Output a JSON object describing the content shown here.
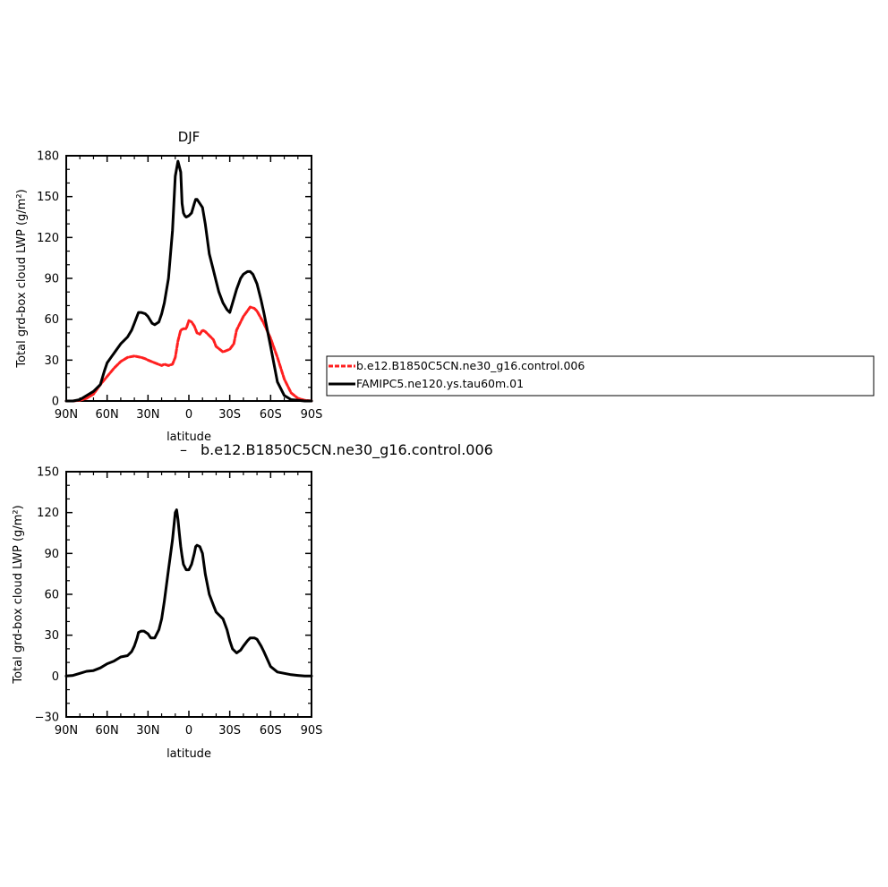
{
  "chart_data": [
    {
      "type": "line",
      "title": "DJF",
      "xlabel": "latitude",
      "ylabel": "Total grd-box cloud LWP (g/m²)",
      "xlim": [
        90,
        -90
      ],
      "ylim": [
        0,
        180
      ],
      "yticks": [
        0,
        30,
        60,
        90,
        120,
        150,
        180
      ],
      "xticks": [
        {
          "value": 90,
          "label": "90N"
        },
        {
          "value": 60,
          "label": "60N"
        },
        {
          "value": 30,
          "label": "30N"
        },
        {
          "value": 0,
          "label": "0"
        },
        {
          "value": -30,
          "label": "30S"
        },
        {
          "value": -60,
          "label": "60S"
        },
        {
          "value": -90,
          "label": "90S"
        }
      ],
      "legend_position": "right",
      "series": [
        {
          "name": "b.e12.B1850C5CN.ne30_g16.control.006",
          "color": "#ff2020",
          "dashed": true,
          "x": [
            90,
            85,
            80,
            75,
            70,
            65,
            60,
            55,
            50,
            45,
            40,
            35,
            32,
            30,
            25,
            20,
            18,
            15,
            12,
            10,
            8,
            6,
            4,
            2,
            0,
            -2,
            -4,
            -6,
            -8,
            -10,
            -12,
            -15,
            -18,
            -20,
            -25,
            -30,
            -33,
            -35,
            -40,
            -45,
            -48,
            -50,
            -55,
            -60,
            -65,
            -70,
            -75,
            -80,
            -85,
            -90
          ],
          "y": [
            0,
            0,
            0.5,
            2,
            5,
            12,
            18,
            24,
            29,
            32,
            33,
            32,
            31,
            30,
            28,
            26,
            27,
            26,
            27,
            32,
            44,
            52,
            53,
            53,
            59,
            58,
            55,
            50,
            49,
            52,
            51,
            48,
            45,
            40,
            36,
            38,
            42,
            52,
            62,
            69,
            68,
            66,
            57,
            46,
            32,
            16,
            6,
            2,
            0.5,
            0
          ]
        },
        {
          "name": "FAMIPC5.ne120.ys.tau60m.01",
          "color": "#000000",
          "dashed": false,
          "x": [
            90,
            85,
            80,
            75,
            70,
            65,
            62,
            60,
            55,
            50,
            45,
            42,
            40,
            37,
            35,
            32,
            30,
            27,
            25,
            22,
            20,
            18,
            15,
            12,
            10,
            8,
            6,
            5,
            4,
            3,
            2,
            0,
            -2,
            -4,
            -5,
            -6,
            -8,
            -10,
            -12,
            -15,
            -18,
            -20,
            -22,
            -25,
            -28,
            -30,
            -33,
            -35,
            -38,
            -40,
            -43,
            -45,
            -47,
            -50,
            -53,
            -55,
            -60,
            -65,
            -70,
            -75,
            -80,
            -85,
            -90
          ],
          "y": [
            0,
            0,
            1,
            4,
            7,
            12,
            22,
            28,
            35,
            42,
            47,
            52,
            57,
            65,
            65,
            64,
            62,
            57,
            56,
            58,
            64,
            72,
            90,
            125,
            165,
            176,
            168,
            145,
            138,
            136,
            135,
            136,
            138,
            145,
            148,
            148,
            145,
            142,
            130,
            108,
            96,
            88,
            80,
            72,
            67,
            65,
            75,
            82,
            90,
            93,
            95,
            95,
            93,
            86,
            74,
            65,
            40,
            14,
            4,
            1,
            0.5,
            0,
            0
          ]
        }
      ]
    },
    {
      "type": "line",
      "title": "b.e12.B1850C5CN.ne30_g16.control.006",
      "title_prefix": "–",
      "xlabel": "latitude",
      "ylabel": "Total grd-box cloud LWP (g/m²)",
      "xlim": [
        90,
        -90
      ],
      "ylim": [
        -30,
        150
      ],
      "yticks": [
        -30,
        0,
        30,
        60,
        90,
        120,
        150
      ],
      "xticks": [
        {
          "value": 90,
          "label": "90N"
        },
        {
          "value": 60,
          "label": "60N"
        },
        {
          "value": 30,
          "label": "30N"
        },
        {
          "value": 0,
          "label": "0"
        },
        {
          "value": -30,
          "label": "30S"
        },
        {
          "value": -60,
          "label": "60S"
        },
        {
          "value": -90,
          "label": "90S"
        }
      ],
      "series": [
        {
          "color": "#000000",
          "dashed": false,
          "x": [
            90,
            85,
            80,
            75,
            70,
            65,
            60,
            55,
            50,
            45,
            42,
            40,
            38,
            37,
            35,
            33,
            30,
            28,
            25,
            22,
            20,
            18,
            15,
            12,
            10,
            9,
            8,
            7,
            6,
            5,
            4,
            2,
            0,
            -2,
            -4,
            -5,
            -6,
            -8,
            -10,
            -12,
            -15,
            -18,
            -20,
            -25,
            -28,
            -30,
            -32,
            -35,
            -38,
            -40,
            -43,
            -45,
            -48,
            -50,
            -53,
            -55,
            -60,
            -65,
            -70,
            -75,
            -80,
            -85,
            -90
          ],
          "y": [
            0,
            0.5,
            2,
            3.5,
            4,
            6,
            9,
            11,
            14,
            15,
            18,
            22,
            28,
            32,
            33,
            33,
            31,
            28,
            28,
            34,
            42,
            55,
            78,
            100,
            120,
            122,
            115,
            105,
            95,
            88,
            82,
            78,
            78,
            82,
            90,
            95,
            96,
            95,
            90,
            75,
            60,
            52,
            47,
            42,
            34,
            26,
            20,
            17,
            19,
            22,
            26,
            28,
            28,
            27,
            22,
            18,
            7,
            3,
            2,
            1,
            0.5,
            0,
            0
          ]
        }
      ]
    }
  ]
}
